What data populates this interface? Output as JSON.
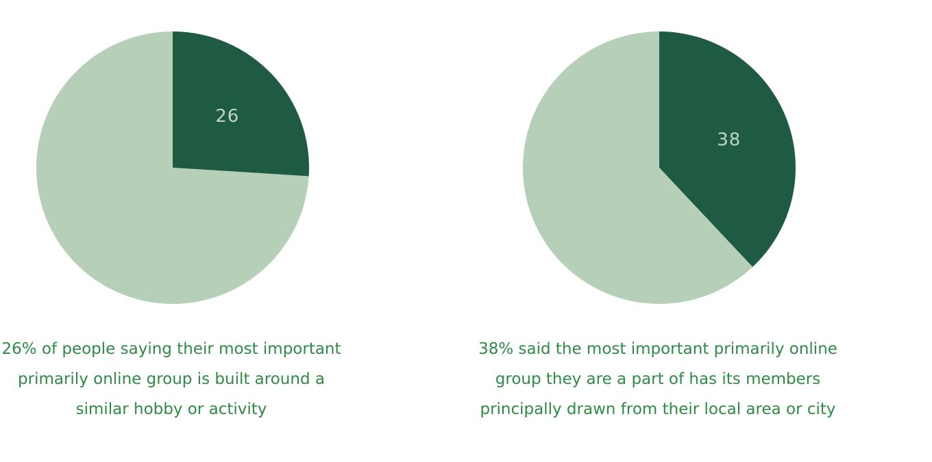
{
  "colors": {
    "highlight": "#1f5a43",
    "remainder": "#b5cfb8",
    "label": "#bcd6c2",
    "caption": "#2f8a45",
    "background": "#ffffff"
  },
  "chart_data": [
    {
      "type": "pie",
      "unit": "%",
      "slices": [
        {
          "value": 26,
          "label": "26"
        },
        {
          "value": 74,
          "label": ""
        }
      ],
      "caption_lines": [
        "26% of people saying their most important",
        "primarily online group is built around a",
        "similar hobby or activity"
      ]
    },
    {
      "type": "pie",
      "unit": "%",
      "slices": [
        {
          "value": 38,
          "label": "38"
        },
        {
          "value": 62,
          "label": ""
        }
      ],
      "caption_lines": [
        "38% said the most important primarily online",
        "group they are a part of has its members",
        "principally drawn from their local area or city"
      ]
    }
  ]
}
